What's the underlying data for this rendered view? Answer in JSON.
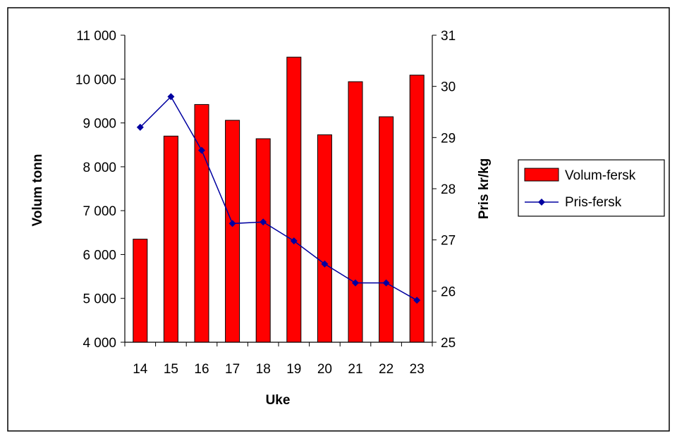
{
  "chart_data": {
    "type": "bar",
    "title": "",
    "xlabel": "Uke",
    "ylabel": "Volum tonn",
    "y2label": "Pris kr/kg",
    "categories": [
      "14",
      "15",
      "16",
      "17",
      "18",
      "19",
      "20",
      "21",
      "22",
      "23"
    ],
    "ylim": [
      4000,
      11000
    ],
    "y_ticks": [
      4000,
      5000,
      6000,
      7000,
      8000,
      9000,
      10000,
      11000
    ],
    "y_tick_labels": [
      "4 000",
      "5 000",
      "6 000",
      "7 000",
      "8 000",
      "9 000",
      "10 000",
      "11 000"
    ],
    "y2lim": [
      25,
      31
    ],
    "y2_ticks": [
      25,
      26,
      27,
      28,
      29,
      30,
      31
    ],
    "y2_tick_labels": [
      "25",
      "26",
      "27",
      "28",
      "29",
      "30",
      "31"
    ],
    "grid": false,
    "legend_position": "right",
    "series": [
      {
        "name": "Volum-fersk",
        "type": "bar",
        "axis": "left",
        "color": "#ff0000",
        "values": [
          6350,
          8700,
          9420,
          9060,
          8640,
          10500,
          8730,
          9940,
          9140,
          10090
        ]
      },
      {
        "name": "Pris-fersk",
        "type": "line",
        "axis": "right",
        "color": "#0000a0",
        "marker": "diamond",
        "values": [
          29.2,
          29.8,
          28.75,
          27.32,
          27.35,
          26.98,
          26.53,
          26.16,
          26.16,
          25.82
        ]
      }
    ]
  }
}
